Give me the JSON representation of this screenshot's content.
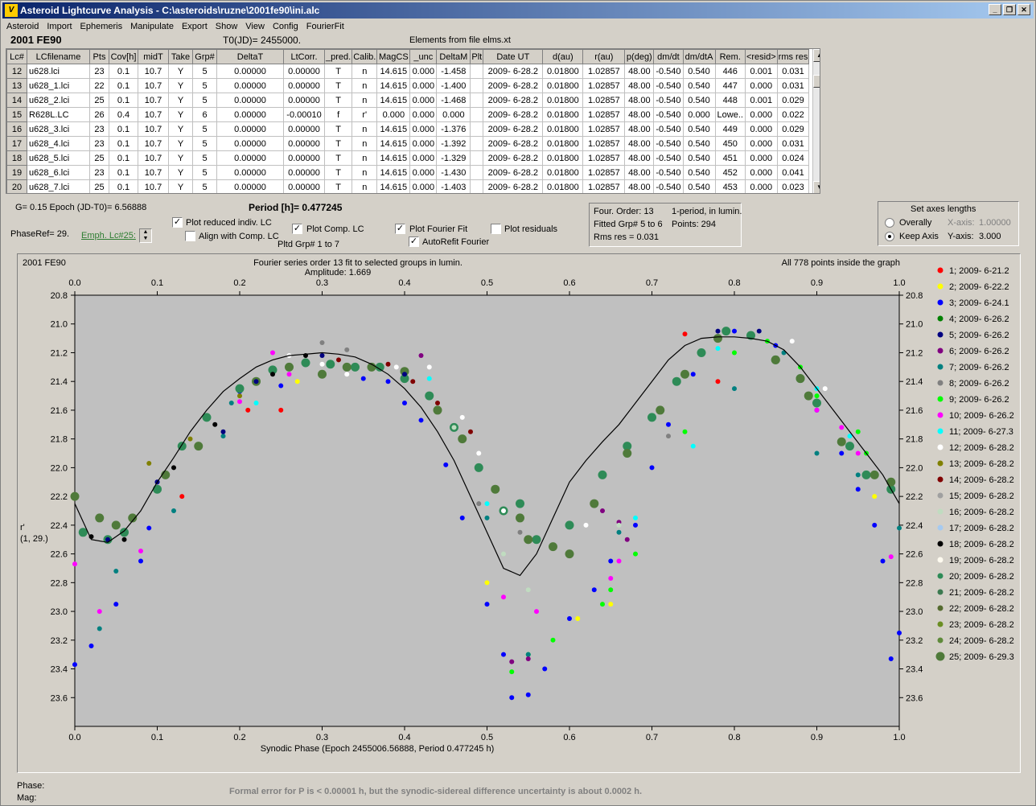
{
  "window": {
    "title": "Asteroid Lightcurve Analysis - C:\\asteroids\\ruzne\\2001fe90\\ini.alc",
    "icon_glyph": "V"
  },
  "menu": [
    "Asteroid",
    "Import",
    "Ephemeris",
    "Manipulate",
    "Export",
    "Show",
    "View",
    "Config",
    "FourierFit"
  ],
  "header": {
    "object": "2001 FE90",
    "t0": "T0(JD)= 2455000.",
    "elements": "Elements from file elms.xt"
  },
  "table": {
    "columns": [
      "Lc#",
      "LCfilename",
      "Pts",
      "Cov[h]",
      "midT",
      "Take",
      "Grp#",
      "DeltaT",
      "LtCorr.",
      "_pred.",
      "Calib.",
      "MagCS",
      "_unc",
      "DeltaM",
      "Plt",
      "Date UT",
      "d(au)",
      "r(au)",
      "p(deg)",
      "dm/dt",
      "dm/dtA",
      "Rem.",
      "<resid>",
      "rms res"
    ],
    "rows": [
      [
        "12",
        "u628.lci",
        "23",
        "0.1",
        "10.7",
        "Y",
        "5",
        "0.00000",
        "0.00000",
        "T",
        "n",
        "14.615",
        "0.000",
        "-1.458",
        "",
        "2009- 6-28.2",
        "0.01800",
        "1.02857",
        "48.00",
        "-0.540",
        "0.540",
        "446",
        "0.001",
        "0.031"
      ],
      [
        "13",
        "u628_1.lci",
        "22",
        "0.1",
        "10.7",
        "Y",
        "5",
        "0.00000",
        "0.00000",
        "T",
        "n",
        "14.615",
        "0.000",
        "-1.400",
        "",
        "2009- 6-28.2",
        "0.01800",
        "1.02857",
        "48.00",
        "-0.540",
        "0.540",
        "447",
        "0.000",
        "0.031"
      ],
      [
        "14",
        "u628_2.lci",
        "25",
        "0.1",
        "10.7",
        "Y",
        "5",
        "0.00000",
        "0.00000",
        "T",
        "n",
        "14.615",
        "0.000",
        "-1.468",
        "",
        "2009- 6-28.2",
        "0.01800",
        "1.02857",
        "48.00",
        "-0.540",
        "0.540",
        "448",
        "0.001",
        "0.029"
      ],
      [
        "15",
        "R628L.LC",
        "26",
        "0.4",
        "10.7",
        "Y",
        "6",
        "0.00000",
        "-0.00010",
        "f",
        "r'",
        "0.000",
        "0.000",
        "0.000",
        "",
        "2009- 6-28.2",
        "0.01800",
        "1.02857",
        "48.00",
        "-0.540",
        "0.000",
        "Lowe..",
        "0.000",
        "0.022"
      ],
      [
        "16",
        "u628_3.lci",
        "23",
        "0.1",
        "10.7",
        "Y",
        "5",
        "0.00000",
        "0.00000",
        "T",
        "n",
        "14.615",
        "0.000",
        "-1.376",
        "",
        "2009- 6-28.2",
        "0.01800",
        "1.02857",
        "48.00",
        "-0.540",
        "0.540",
        "449",
        "0.000",
        "0.029"
      ],
      [
        "17",
        "u628_4.lci",
        "23",
        "0.1",
        "10.7",
        "Y",
        "5",
        "0.00000",
        "0.00000",
        "T",
        "n",
        "14.615",
        "0.000",
        "-1.392",
        "",
        "2009- 6-28.2",
        "0.01800",
        "1.02857",
        "48.00",
        "-0.540",
        "0.540",
        "450",
        "0.000",
        "0.031"
      ],
      [
        "18",
        "u628_5.lci",
        "25",
        "0.1",
        "10.7",
        "Y",
        "5",
        "0.00000",
        "0.00000",
        "T",
        "n",
        "14.615",
        "0.000",
        "-1.329",
        "",
        "2009- 6-28.2",
        "0.01800",
        "1.02857",
        "48.00",
        "-0.540",
        "0.540",
        "451",
        "0.000",
        "0.024"
      ],
      [
        "19",
        "u628_6.lci",
        "23",
        "0.1",
        "10.7",
        "Y",
        "5",
        "0.00000",
        "0.00000",
        "T",
        "n",
        "14.615",
        "0.000",
        "-1.430",
        "",
        "2009- 6-28.2",
        "0.01800",
        "1.02857",
        "48.00",
        "-0.540",
        "0.540",
        "452",
        "0.000",
        "0.041"
      ],
      [
        "20",
        "u628_7.lci",
        "25",
        "0.1",
        "10.7",
        "Y",
        "5",
        "0.00000",
        "0.00000",
        "T",
        "n",
        "14.615",
        "0.000",
        "-1.403",
        "",
        "2009- 6-28.2",
        "0.01800",
        "1.02857",
        "48.00",
        "-0.540",
        "0.540",
        "453",
        "0.000",
        "0.023"
      ]
    ]
  },
  "controls": {
    "g_epoch": "G= 0.15    Epoch (JD-T0)= 6.56888",
    "period": "Period [h]= 0.477245",
    "phaseref": "PhaseRef= 29.",
    "emph": "Emph. Lc#25:",
    "plot_reduced": "Plot reduced indiv. LC",
    "plot_reduced_checked": true,
    "align_comp": "Align with Comp. LC",
    "align_comp_checked": false,
    "plot_comp": "Plot Comp. LC",
    "plot_comp_checked": true,
    "pltd_grp": "Pltd Grp#  1   to   7",
    "plot_fourier": "Plot Fourier Fit",
    "plot_fourier_checked": true,
    "autorefit": "AutoRefit Fourier",
    "autorefit_checked": true,
    "plot_residuals": "Plot residuals",
    "plot_residuals_checked": false,
    "fourier_info": {
      "order": "Four. Order: 13",
      "period_mode": "1-period, in lumin.",
      "fitted": "Fitted Grp# 5 to 6",
      "points": "Points: 294",
      "rms": "Rms res     = 0.031"
    },
    "axes": {
      "title": "Set axes lengths",
      "overally": "Overally",
      "keep_axis": "Keep Axis",
      "selected": "keep_axis",
      "x_label": "X-axis:",
      "x_value": "1.00000",
      "y_label": "Y-axis:",
      "y_value": "3.000"
    }
  },
  "chart_data": {
    "type": "scatter",
    "name": "2001 FE90",
    "title": "Fourier series order 13 fit to selected groups in lumin.",
    "subtitle": "Amplitude: 1.669",
    "note": "All 778 points inside the graph",
    "xlabel": "Synodic Phase (Epoch 2455006.56888, Period 0.477245 h)",
    "ylabel": "r'",
    "ylabel2": "(1, 29.)",
    "xlim": [
      0.0,
      1.0
    ],
    "ylim": [
      20.8,
      23.8
    ],
    "y_inverted": true,
    "x_ticks": [
      "0.0",
      "0.1",
      "0.2",
      "0.3",
      "0.4",
      "0.5",
      "0.6",
      "0.7",
      "0.8",
      "0.9",
      "1.0"
    ],
    "y_ticks": [
      "20.8",
      "21.0",
      "21.2",
      "21.4",
      "21.6",
      "21.8",
      "22.0",
      "22.2",
      "22.4",
      "22.6",
      "22.8",
      "23.0",
      "23.2",
      "23.4",
      "23.6"
    ],
    "legend": [
      {
        "label": "1; 2009- 6-21.2",
        "color": "#ff0000"
      },
      {
        "label": "2; 2009- 6-22.2",
        "color": "#ffff00"
      },
      {
        "label": "3; 2009- 6-24.1",
        "color": "#0000ff"
      },
      {
        "label": "4; 2009- 6-26.2",
        "color": "#008000"
      },
      {
        "label": "5; 2009- 6-26.2",
        "color": "#000080"
      },
      {
        "label": "6; 2009- 6-26.2",
        "color": "#800080"
      },
      {
        "label": "7; 2009- 6-26.2",
        "color": "#008080"
      },
      {
        "label": "8; 2009- 6-26.2",
        "color": "#808080"
      },
      {
        "label": "9; 2009- 6-26.2",
        "color": "#00ff00"
      },
      {
        "label": "10; 2009- 6-26.2",
        "color": "#ff00ff"
      },
      {
        "label": "11; 2009- 6-27.3",
        "color": "#00ffff"
      },
      {
        "label": "12; 2009- 6-28.2",
        "color": "#ffffff"
      },
      {
        "label": "13; 2009- 6-28.2",
        "color": "#808000"
      },
      {
        "label": "14; 2009- 6-28.2",
        "color": "#800000"
      },
      {
        "label": "15; 2009- 6-28.2",
        "color": "#a0a0a0"
      },
      {
        "label": "16; 2009- 6-28.2",
        "color": "#c0dcc0"
      },
      {
        "label": "17; 2009- 6-28.2",
        "color": "#a6caf0"
      },
      {
        "label": "18; 2009- 6-28.2",
        "color": "#000000"
      },
      {
        "label": "19; 2009- 6-28.2",
        "color": "#fffbf0"
      },
      {
        "label": "20; 2009- 6-28.2",
        "color": "#2e8b57"
      },
      {
        "label": "21; 2009- 6-28.2",
        "color": "#3c7a50"
      },
      {
        "label": "22; 2009- 6-28.2",
        "color": "#556b2f"
      },
      {
        "label": "23; 2009- 6-28.2",
        "color": "#6b8e23"
      },
      {
        "label": "24; 2009- 6-28.2",
        "color": "#5f8a3a"
      },
      {
        "label": "25; 2009- 6-29.3",
        "color": "#4f7a3a"
      }
    ],
    "fourier_fit": {
      "x": [
        0.0,
        0.02,
        0.04,
        0.06,
        0.08,
        0.1,
        0.12,
        0.14,
        0.16,
        0.18,
        0.2,
        0.22,
        0.24,
        0.26,
        0.28,
        0.3,
        0.32,
        0.34,
        0.36,
        0.38,
        0.4,
        0.42,
        0.44,
        0.46,
        0.48,
        0.5,
        0.52,
        0.54,
        0.56,
        0.58,
        0.6,
        0.62,
        0.64,
        0.66,
        0.68,
        0.7,
        0.72,
        0.74,
        0.76,
        0.78,
        0.8,
        0.82,
        0.84,
        0.86,
        0.88,
        0.9,
        0.92,
        0.94,
        0.96,
        0.98,
        1.0
      ],
      "y": [
        22.25,
        22.5,
        22.52,
        22.44,
        22.3,
        22.1,
        21.93,
        21.75,
        21.6,
        21.47,
        21.38,
        21.3,
        21.25,
        21.22,
        21.21,
        21.2,
        21.21,
        21.23,
        21.28,
        21.35,
        21.45,
        21.58,
        21.75,
        21.95,
        22.2,
        22.45,
        22.7,
        22.75,
        22.6,
        22.35,
        22.1,
        21.95,
        21.82,
        21.7,
        21.55,
        21.4,
        21.25,
        21.15,
        21.1,
        21.09,
        21.09,
        21.1,
        21.12,
        21.18,
        21.3,
        21.45,
        21.6,
        21.75,
        21.9,
        22.05,
        22.25
      ]
    },
    "points": {
      "count": 778,
      "series": [
        {
          "group": 3,
          "x": [
            0.0,
            0.02,
            0.05,
            0.08,
            0.09,
            0.1,
            0.2,
            0.25,
            0.3,
            0.35,
            0.38,
            0.4,
            0.42,
            0.45,
            0.47,
            0.5,
            0.52,
            0.53,
            0.55,
            0.57,
            0.6,
            0.63,
            0.65,
            0.68,
            0.7,
            0.72,
            0.75,
            0.8,
            0.85,
            0.9,
            0.93,
            0.95,
            0.97,
            0.98,
            0.99,
            1.0
          ],
          "y": [
            23.37,
            23.24,
            22.95,
            22.65,
            22.42,
            22.1,
            21.47,
            21.43,
            21.36,
            21.38,
            21.4,
            21.55,
            21.67,
            21.98,
            22.35,
            22.95,
            23.3,
            23.6,
            23.58,
            23.4,
            23.05,
            22.85,
            22.65,
            22.4,
            22.0,
            21.7,
            21.35,
            21.05,
            21.15,
            21.6,
            21.9,
            22.15,
            22.4,
            22.65,
            23.33,
            23.15
          ]
        },
        {
          "group": 20,
          "x": [
            0.01,
            0.04,
            0.06,
            0.1,
            0.13,
            0.16,
            0.2,
            0.24,
            0.28,
            0.31,
            0.34,
            0.37,
            0.4,
            0.43,
            0.46,
            0.49,
            0.52,
            0.54,
            0.56,
            0.6,
            0.64,
            0.67,
            0.7,
            0.73,
            0.76,
            0.79,
            0.82,
            0.85,
            0.88,
            0.9,
            0.94,
            0.96,
            0.99
          ],
          "y": [
            22.45,
            22.5,
            22.45,
            22.15,
            21.85,
            21.65,
            21.45,
            21.32,
            21.27,
            21.28,
            21.3,
            21.3,
            21.38,
            21.5,
            21.72,
            22.0,
            22.3,
            22.25,
            22.5,
            22.4,
            22.05,
            21.85,
            21.65,
            21.4,
            21.2,
            21.05,
            21.08,
            21.25,
            21.38,
            21.55,
            21.85,
            22.05,
            22.15
          ]
        },
        {
          "group": 10,
          "x": [
            0.0,
            0.03,
            0.08,
            0.2,
            0.24,
            0.26,
            0.52,
            0.56,
            0.65,
            0.66,
            0.9,
            0.93,
            0.95,
            0.99
          ],
          "y": [
            22.67,
            23.0,
            22.58,
            21.54,
            21.2,
            21.35,
            22.9,
            23.0,
            22.77,
            22.65,
            21.6,
            21.72,
            21.9,
            22.62
          ]
        },
        {
          "group": 9,
          "x": [
            0.53,
            0.55,
            0.58,
            0.64,
            0.65,
            0.68,
            0.74,
            0.8,
            0.84,
            0.88,
            0.9,
            0.95,
            0.96
          ],
          "y": [
            23.42,
            23.3,
            23.2,
            22.95,
            22.85,
            22.6,
            21.75,
            21.2,
            21.12,
            21.3,
            21.5,
            21.75,
            21.9
          ]
        },
        {
          "group": 1,
          "x": [
            0.13,
            0.21,
            0.25,
            0.74,
            0.78
          ],
          "y": [
            22.2,
            21.6,
            21.6,
            21.07,
            21.4
          ]
        },
        {
          "group": 7,
          "x": [
            0.03,
            0.05,
            0.12,
            0.18,
            0.19,
            0.5,
            0.55,
            0.66,
            0.8,
            0.86,
            0.9,
            0.95,
            1.0
          ],
          "y": [
            23.12,
            22.72,
            22.3,
            21.78,
            21.55,
            22.35,
            23.3,
            22.45,
            21.45,
            21.2,
            21.9,
            22.05,
            22.42
          ]
        },
        {
          "group": 11,
          "x": [
            0.22,
            0.43,
            0.5,
            0.68,
            0.75,
            0.78,
            0.9,
            0.94
          ],
          "y": [
            21.55,
            21.38,
            22.25,
            22.35,
            21.85,
            21.17,
            21.45,
            21.78
          ]
        },
        {
          "group": 12,
          "x": [
            0.26,
            0.3,
            0.33,
            0.39,
            0.43,
            0.47,
            0.49,
            0.52,
            0.62,
            0.83,
            0.87,
            0.91
          ],
          "y": [
            21.22,
            21.28,
            21.35,
            21.3,
            21.3,
            21.65,
            21.9,
            22.3,
            22.4,
            21.05,
            21.12,
            21.45
          ]
        },
        {
          "group": 8,
          "x": [
            0.3,
            0.33,
            0.49,
            0.54,
            0.72
          ],
          "y": [
            21.13,
            21.18,
            22.25,
            22.45,
            21.78
          ]
        },
        {
          "group": 6,
          "x": [
            0.42,
            0.53,
            0.55,
            0.64,
            0.66,
            0.67
          ],
          "y": [
            21.22,
            23.35,
            23.33,
            22.3,
            22.38,
            22.5
          ]
        },
        {
          "group": 2,
          "x": [
            0.27,
            0.5,
            0.61,
            0.65,
            0.97
          ],
          "y": [
            21.4,
            22.8,
            23.05,
            22.95,
            22.2
          ]
        },
        {
          "group": 25,
          "x": [
            0.0,
            0.03,
            0.05,
            0.07,
            0.11,
            0.15,
            0.22,
            0.26,
            0.3,
            0.33,
            0.36,
            0.4,
            0.44,
            0.47,
            0.51,
            0.54,
            0.55,
            0.58,
            0.6,
            0.63,
            0.67,
            0.71,
            0.74,
            0.78,
            0.85,
            0.88,
            0.89,
            0.93,
            0.97,
            0.99
          ],
          "y": [
            22.2,
            22.35,
            22.4,
            22.35,
            22.05,
            21.85,
            21.4,
            21.3,
            21.35,
            21.3,
            21.3,
            21.33,
            21.6,
            21.8,
            22.15,
            22.35,
            22.5,
            22.55,
            22.6,
            22.25,
            21.9,
            21.6,
            21.35,
            21.1,
            21.25,
            21.38,
            21.5,
            21.82,
            22.05,
            22.1
          ]
        },
        {
          "group": 5,
          "x": [
            0.04,
            0.1,
            0.18,
            0.22,
            0.3,
            0.4,
            0.78,
            0.83
          ],
          "y": [
            22.5,
            22.1,
            21.75,
            21.4,
            21.22,
            21.35,
            21.05,
            21.05
          ]
        },
        {
          "group": 18,
          "x": [
            0.02,
            0.06,
            0.12,
            0.17,
            0.24,
            0.28
          ],
          "y": [
            22.48,
            22.5,
            22.0,
            21.7,
            21.35,
            21.22
          ]
        },
        {
          "group": 14,
          "x": [
            0.32,
            0.38,
            0.41,
            0.44,
            0.48
          ],
          "y": [
            21.25,
            21.28,
            21.4,
            21.55,
            21.75
          ]
        },
        {
          "group": 13,
          "x": [
            0.09,
            0.14,
            0.2
          ],
          "y": [
            21.97,
            21.8,
            21.5
          ]
        },
        {
          "group": 16,
          "x": [
            0.46,
            0.52,
            0.55,
            0.66
          ],
          "y": [
            21.72,
            22.6,
            22.85,
            22.4
          ]
        }
      ]
    }
  },
  "status": {
    "phase_label": "Phase:",
    "mag_label": "Mag:",
    "message": "Formal error for P is < 0.00001 h, but the synodic-sidereal difference uncertainty is about 0.0002 h."
  }
}
